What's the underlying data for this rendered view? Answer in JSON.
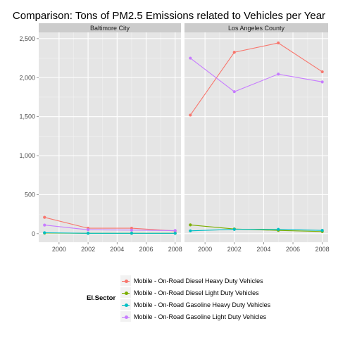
{
  "chart_data": {
    "type": "line",
    "title": "Comparison: Tons of PM2.5 Emissions related to Vehicles per Year",
    "facets": [
      "Baltimore City",
      "Los Angeles County"
    ],
    "x": [
      1999,
      2002,
      2005,
      2008
    ],
    "x_ticks": [
      "2000",
      "2002",
      "2004",
      "2006",
      "2008"
    ],
    "y_ticks": [
      "0",
      "500",
      "1,000",
      "1,500",
      "2,000",
      "2,500"
    ],
    "xlim": [
      1998.6,
      2008.4
    ],
    "ylim": [
      -110,
      2580
    ],
    "legend_title": "EI.Sector",
    "legend_position": "bottom",
    "series": [
      {
        "name": "Mobile - On-Road Diesel Heavy Duty Vehicles",
        "color": "#F8766D",
        "values": {
          "Baltimore City": [
            209,
            70,
            70,
            35
          ],
          "Los Angeles County": [
            1520,
            2325,
            2445,
            2075
          ]
        }
      },
      {
        "name": "Mobile - On-Road Diesel Light Duty Vehicles",
        "color": "#7CAE00",
        "values": {
          "Baltimore City": [
            7,
            5,
            5,
            5
          ],
          "Los Angeles County": [
            112,
            60,
            42,
            27
          ]
        }
      },
      {
        "name": "Mobile - On-Road Gasoline Heavy Duty Vehicles",
        "color": "#00BFC4",
        "values": {
          "Baltimore City": [
            12,
            5,
            5,
            5
          ],
          "Los Angeles County": [
            36,
            55,
            55,
            42
          ]
        }
      },
      {
        "name": "Mobile - On-Road Gasoline Light Duty Vehicles",
        "color": "#C77CFF",
        "values": {
          "Baltimore City": [
            110,
            50,
            45,
            40
          ],
          "Los Angeles County": [
            2250,
            1820,
            2045,
            1945
          ]
        }
      }
    ]
  }
}
